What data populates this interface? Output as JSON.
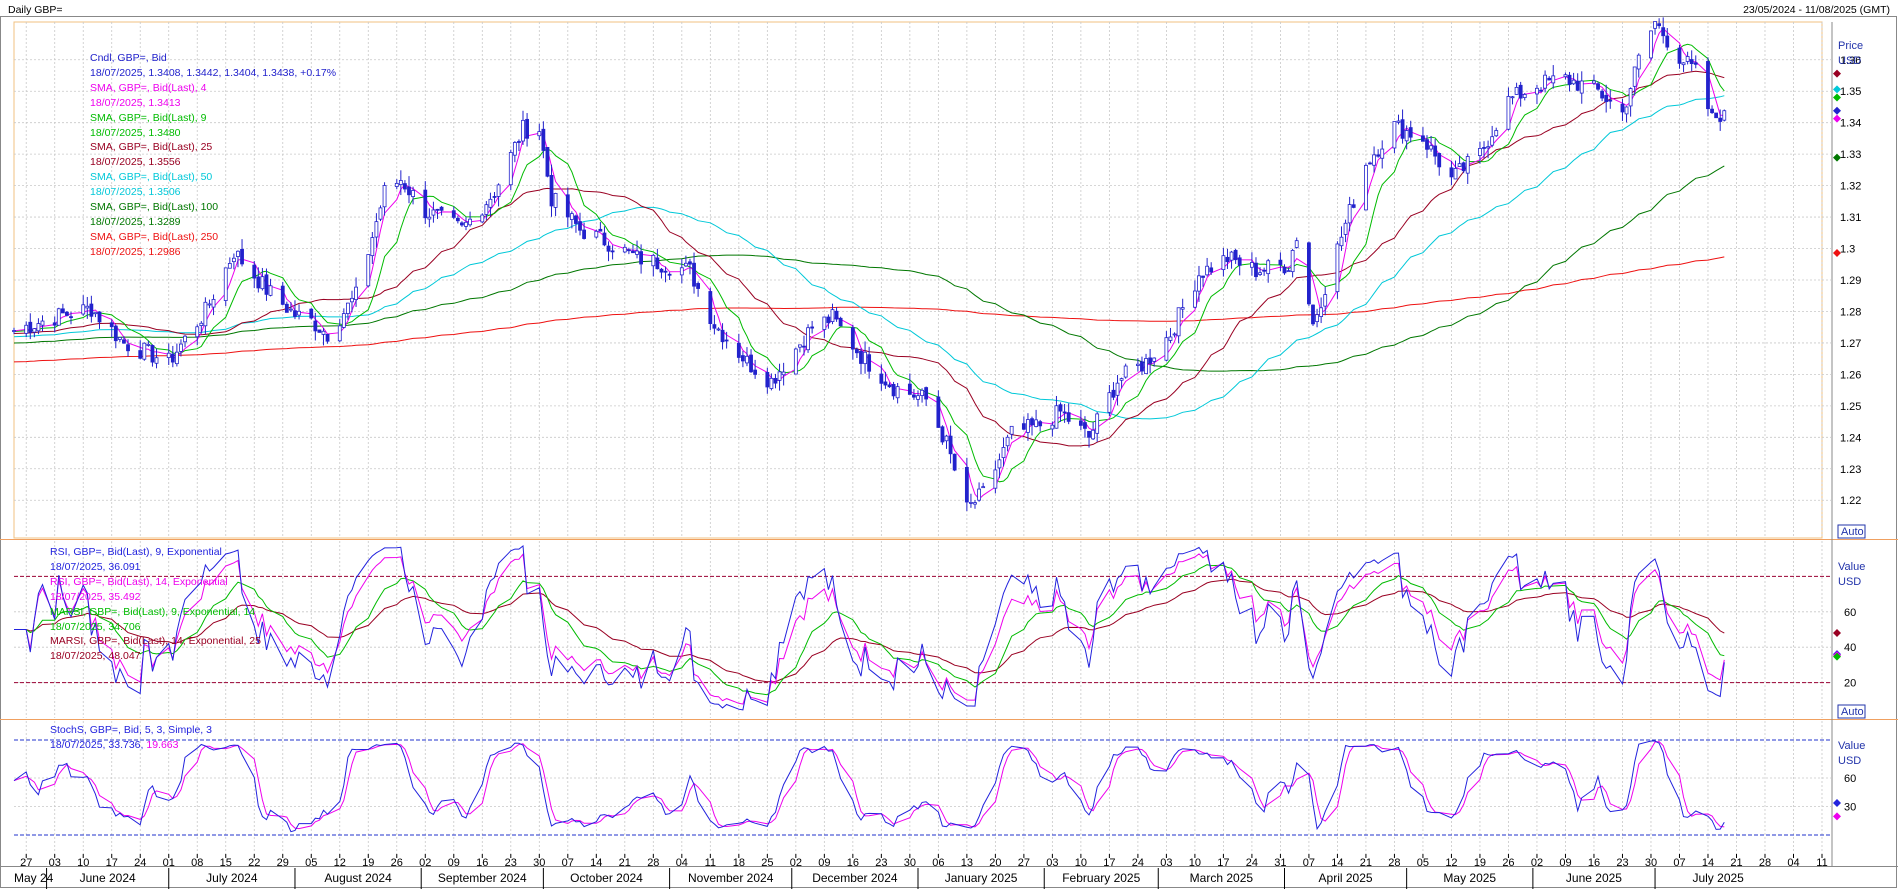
{
  "header": {
    "title": "Daily GBP=",
    "range": "23/05/2024 - 11/08/2025 (GMT)"
  },
  "colors": {
    "candle": "#2222cc",
    "sma4": "#ee00ee",
    "sma9": "#00bb00",
    "sma25": "#990022",
    "sma50": "#00c8d8",
    "sma100": "#007700",
    "sma250": "#ee1111",
    "rsi9": "#2222dd",
    "rsi14": "#ee00ee",
    "marsi9": "#00bb00",
    "marsi14": "#990022",
    "stoch_k": "#2222dd",
    "stoch_d": "#ee00ee"
  },
  "price_panel": {
    "unit_label": "Price",
    "currency": "USD",
    "auto_label": "Auto",
    "legend": [
      {
        "name": "Cndl, GBP=, Bid",
        "value": "18/07/2025, 1.3408, 1.3442, 1.3404, 1.3438, +0.17%",
        "color": "#2222cc"
      },
      {
        "name": "SMA, GBP=, Bid(Last),  4",
        "value": "18/07/2025, 1.3413",
        "color": "#ee00ee"
      },
      {
        "name": "SMA, GBP=, Bid(Last),  9",
        "value": "18/07/2025, 1.3480",
        "color": "#00bb00"
      },
      {
        "name": "SMA, GBP=, Bid(Last),  25",
        "value": "18/07/2025, 1.3556",
        "color": "#990022"
      },
      {
        "name": "SMA, GBP=, Bid(Last),  50",
        "value": "18/07/2025, 1.3506",
        "color": "#00c8d8"
      },
      {
        "name": "SMA, GBP=, Bid(Last),  100",
        "value": "18/07/2025, 1.3289",
        "color": "#007700"
      },
      {
        "name": "SMA, GBP=, Bid(Last),  250",
        "value": "18/07/2025, 1.2986",
        "color": "#ee1111"
      }
    ]
  },
  "rsi_panel": {
    "unit_label": "Value",
    "currency": "USD",
    "auto_label": "Auto",
    "legend": [
      {
        "name": "RSI, GBP=, Bid(Last),  9, Exponential",
        "value": "18/07/2025, 36.091",
        "color": "#2222dd"
      },
      {
        "name": "RSI, GBP=, Bid(Last),  14, Exponential",
        "value": "18/07/2025, 35.492",
        "color": "#ee00ee"
      },
      {
        "name": "MARSI, GBP=, Bid(Last),  9, Exponential, 14",
        "value": "18/07/2025, 34.706",
        "color": "#00bb00"
      },
      {
        "name": "MARSI, GBP=, Bid(Last),  14, Exponential, 25",
        "value": "18/07/2025, 48.047",
        "color": "#990022"
      }
    ]
  },
  "stoch_panel": {
    "unit_label": "Value",
    "currency": "USD",
    "legend_name": "StochS, GBP=, Bid,  5, 3, Simple, 3",
    "legend_date": "18/07/2025, ",
    "legend_k": "33.736",
    "legend_d": "19.663"
  },
  "x_axis": {
    "day_ticks": [
      "27",
      "03",
      "10",
      "17",
      "24",
      "01",
      "08",
      "15",
      "22",
      "29",
      "05",
      "12",
      "19",
      "26",
      "02",
      "09",
      "16",
      "23",
      "30",
      "07",
      "14",
      "21",
      "28",
      "04",
      "11",
      "18",
      "25",
      "02",
      "09",
      "16",
      "23",
      "30",
      "06",
      "13",
      "20",
      "27",
      "03",
      "10",
      "17",
      "24",
      "03",
      "10",
      "17",
      "24",
      "31",
      "07",
      "14",
      "21",
      "28",
      "05",
      "12",
      "19",
      "26",
      "02",
      "09",
      "16",
      "23",
      "30",
      "07",
      "14",
      "21",
      "28",
      "04",
      "11"
    ],
    "month_labels": [
      "May 24",
      "June 2024",
      "July 2024",
      "August 2024",
      "September 2024",
      "October 2024",
      "November 2024",
      "December 2024",
      "January 2025",
      "February 2025",
      "March 2025",
      "April 2025",
      "May 2025",
      "June 2025",
      "July 2025"
    ]
  },
  "chart_data": [
    {
      "type": "candlestick",
      "title": "Daily GBP=",
      "ylabel": "Price USD",
      "ylim": [
        1.208,
        1.372
      ],
      "yticks": [
        1.22,
        1.23,
        1.24,
        1.25,
        1.26,
        1.27,
        1.28,
        1.29,
        1.3,
        1.31,
        1.32,
        1.33,
        1.34,
        1.35,
        1.36
      ],
      "date_range": [
        "2024-05-24",
        "2025-07-18"
      ],
      "last_bar": {
        "date": "18/07/2025",
        "open": 1.3408,
        "high": 1.3442,
        "low": 1.3404,
        "close": 1.3438,
        "change": "+0.17%"
      },
      "close_path": [
        [
          "2024-05-24",
          1.274
        ],
        [
          "2024-06-05",
          1.279
        ],
        [
          "2024-06-12",
          1.281
        ],
        [
          "2024-06-20",
          1.27
        ],
        [
          "2024-07-01",
          1.264
        ],
        [
          "2024-07-10",
          1.28
        ],
        [
          "2024-07-17",
          1.299
        ],
        [
          "2024-07-25",
          1.287
        ],
        [
          "2024-08-01",
          1.279
        ],
        [
          "2024-08-05",
          1.277
        ],
        [
          "2024-08-09",
          1.273
        ],
        [
          "2024-08-16",
          1.285
        ],
        [
          "2024-08-23",
          1.318
        ],
        [
          "2024-08-27",
          1.322
        ],
        [
          "2024-09-02",
          1.312
        ],
        [
          "2024-09-11",
          1.306
        ],
        [
          "2024-09-19",
          1.318
        ],
        [
          "2024-09-26",
          1.338
        ],
        [
          "2024-09-30",
          1.338
        ],
        [
          "2024-10-03",
          1.316
        ],
        [
          "2024-10-10",
          1.306
        ],
        [
          "2024-10-17",
          1.302
        ],
        [
          "2024-10-24",
          1.297
        ],
        [
          "2024-10-31",
          1.295
        ],
        [
          "2024-11-06",
          1.293
        ],
        [
          "2024-11-12",
          1.276
        ],
        [
          "2024-11-20",
          1.264
        ],
        [
          "2024-11-26",
          1.258
        ],
        [
          "2024-12-06",
          1.275
        ],
        [
          "2024-12-11",
          1.278
        ],
        [
          "2024-12-18",
          1.266
        ],
        [
          "2024-12-26",
          1.256
        ],
        [
          "2025-01-03",
          1.252
        ],
        [
          "2025-01-08",
          1.238
        ],
        [
          "2025-01-13",
          1.217
        ],
        [
          "2025-01-17",
          1.222
        ],
        [
          "2025-01-24",
          1.241
        ],
        [
          "2025-01-31",
          1.244
        ],
        [
          "2025-02-05",
          1.248
        ],
        [
          "2025-02-12",
          1.24
        ],
        [
          "2025-02-19",
          1.258
        ],
        [
          "2025-02-26",
          1.264
        ],
        [
          "2025-03-04",
          1.273
        ],
        [
          "2025-03-11",
          1.292
        ],
        [
          "2025-03-18",
          1.297
        ],
        [
          "2025-03-25",
          1.293
        ],
        [
          "2025-04-02",
          1.295
        ],
        [
          "2025-04-04",
          1.304
        ],
        [
          "2025-04-08",
          1.276
        ],
        [
          "2025-04-14",
          1.3
        ],
        [
          "2025-04-21",
          1.327
        ],
        [
          "2025-04-28",
          1.339
        ],
        [
          "2025-05-05",
          1.335
        ],
        [
          "2025-05-12",
          1.322
        ],
        [
          "2025-05-19",
          1.33
        ],
        [
          "2025-05-26",
          1.347
        ],
        [
          "2025-06-02",
          1.352
        ],
        [
          "2025-06-09",
          1.354
        ],
        [
          "2025-06-17",
          1.35
        ],
        [
          "2025-06-23",
          1.343
        ],
        [
          "2025-06-27",
          1.36
        ],
        [
          "2025-07-01",
          1.372
        ],
        [
          "2025-07-07",
          1.361
        ],
        [
          "2025-07-11",
          1.356
        ],
        [
          "2025-07-15",
          1.341
        ],
        [
          "2025-07-18",
          1.3438
        ]
      ],
      "series": [
        {
          "name": "SMA 4",
          "last": 1.3413
        },
        {
          "name": "SMA 9",
          "last": 1.348
        },
        {
          "name": "SMA 25",
          "last": 1.3556
        },
        {
          "name": "SMA 50",
          "last": 1.3506
        },
        {
          "name": "SMA 100",
          "last": 1.3289
        },
        {
          "name": "SMA 250",
          "last": 1.2986
        }
      ]
    },
    {
      "type": "line",
      "ylabel": "Value USD",
      "ylim": [
        0,
        100
      ],
      "yticks": [
        20,
        40,
        60
      ],
      "reference_lines": [
        20,
        80
      ],
      "series": [
        {
          "name": "RSI 9, Exponential",
          "last": 36.091
        },
        {
          "name": "RSI 14, Exponential",
          "last": 35.492
        },
        {
          "name": "MARSI 9, Exponential, 14",
          "last": 34.706
        },
        {
          "name": "MARSI 14, Exponential, 25",
          "last": 48.047
        }
      ]
    },
    {
      "type": "line",
      "ylabel": "Value USD",
      "ylim": [
        -20,
        120
      ],
      "yticks": [
        30,
        60
      ],
      "reference_lines": [
        0,
        100
      ],
      "series": [
        {
          "name": "%K",
          "last": 33.736
        },
        {
          "name": "%D",
          "last": 19.663
        }
      ]
    }
  ]
}
